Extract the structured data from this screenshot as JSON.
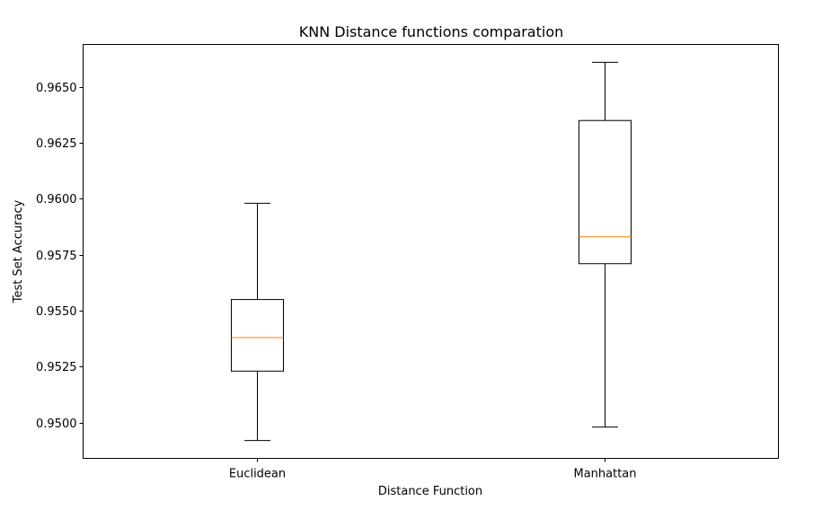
{
  "chart_data": {
    "type": "box",
    "title": "KNN Distance functions comparation",
    "xlabel": "Distance Function",
    "ylabel": "Test Set Accuracy",
    "ylim": [
      0.9484,
      0.9669
    ],
    "yticks": [
      "0.9500",
      "0.9525",
      "0.9550",
      "0.9575",
      "0.9600",
      "0.9625",
      "0.9650"
    ],
    "categories": [
      "Euclidean",
      "Manhattan"
    ],
    "series": [
      {
        "category": "Euclidean",
        "min": 0.9492,
        "q1": 0.9523,
        "median": 0.9538,
        "q3": 0.9555,
        "max": 0.9598
      },
      {
        "category": "Manhattan",
        "min": 0.9498,
        "q1": 0.9571,
        "median": 0.9583,
        "q3": 0.9635,
        "max": 0.9661
      }
    ],
    "grid": false,
    "colors": {
      "box": "#000000",
      "median": "#ff7f0e",
      "axes": "#000000"
    }
  }
}
